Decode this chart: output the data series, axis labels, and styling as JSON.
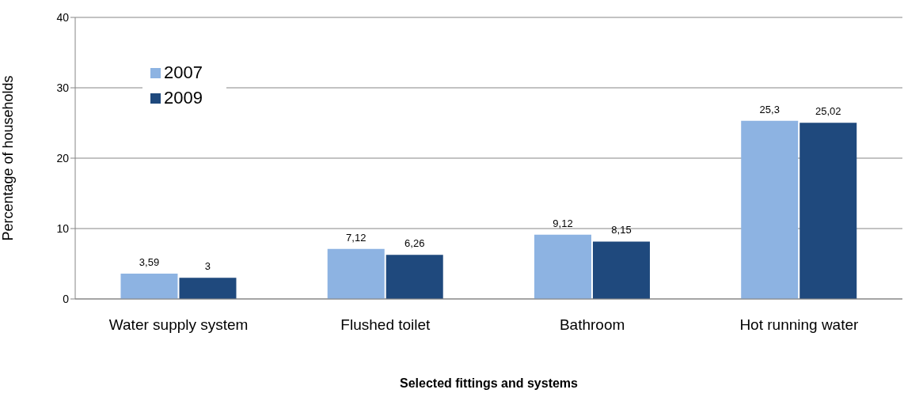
{
  "chart_data": {
    "type": "bar",
    "xlabel": "Selected fittings and systems",
    "ylabel": "Percentage of households",
    "categories": [
      "Water supply system",
      "Flushed toilet",
      "Bathroom",
      "Hot running water"
    ],
    "series": [
      {
        "name": "2007",
        "color": "#8db3e2",
        "values": [
          3.59,
          7.12,
          9.12,
          25.3
        ],
        "value_labels": [
          "3,59",
          "7,12",
          "9,12",
          "25,3"
        ]
      },
      {
        "name": "2009",
        "color": "#1f497d",
        "values": [
          3,
          6.26,
          8.15,
          25.02
        ],
        "value_labels": [
          "3",
          "6,26",
          "8,15",
          "25,02"
        ]
      }
    ],
    "ylim": [
      0,
      40
    ],
    "yticks": [
      0,
      10,
      20,
      30,
      40
    ],
    "grid": "y",
    "legend": "top left"
  }
}
